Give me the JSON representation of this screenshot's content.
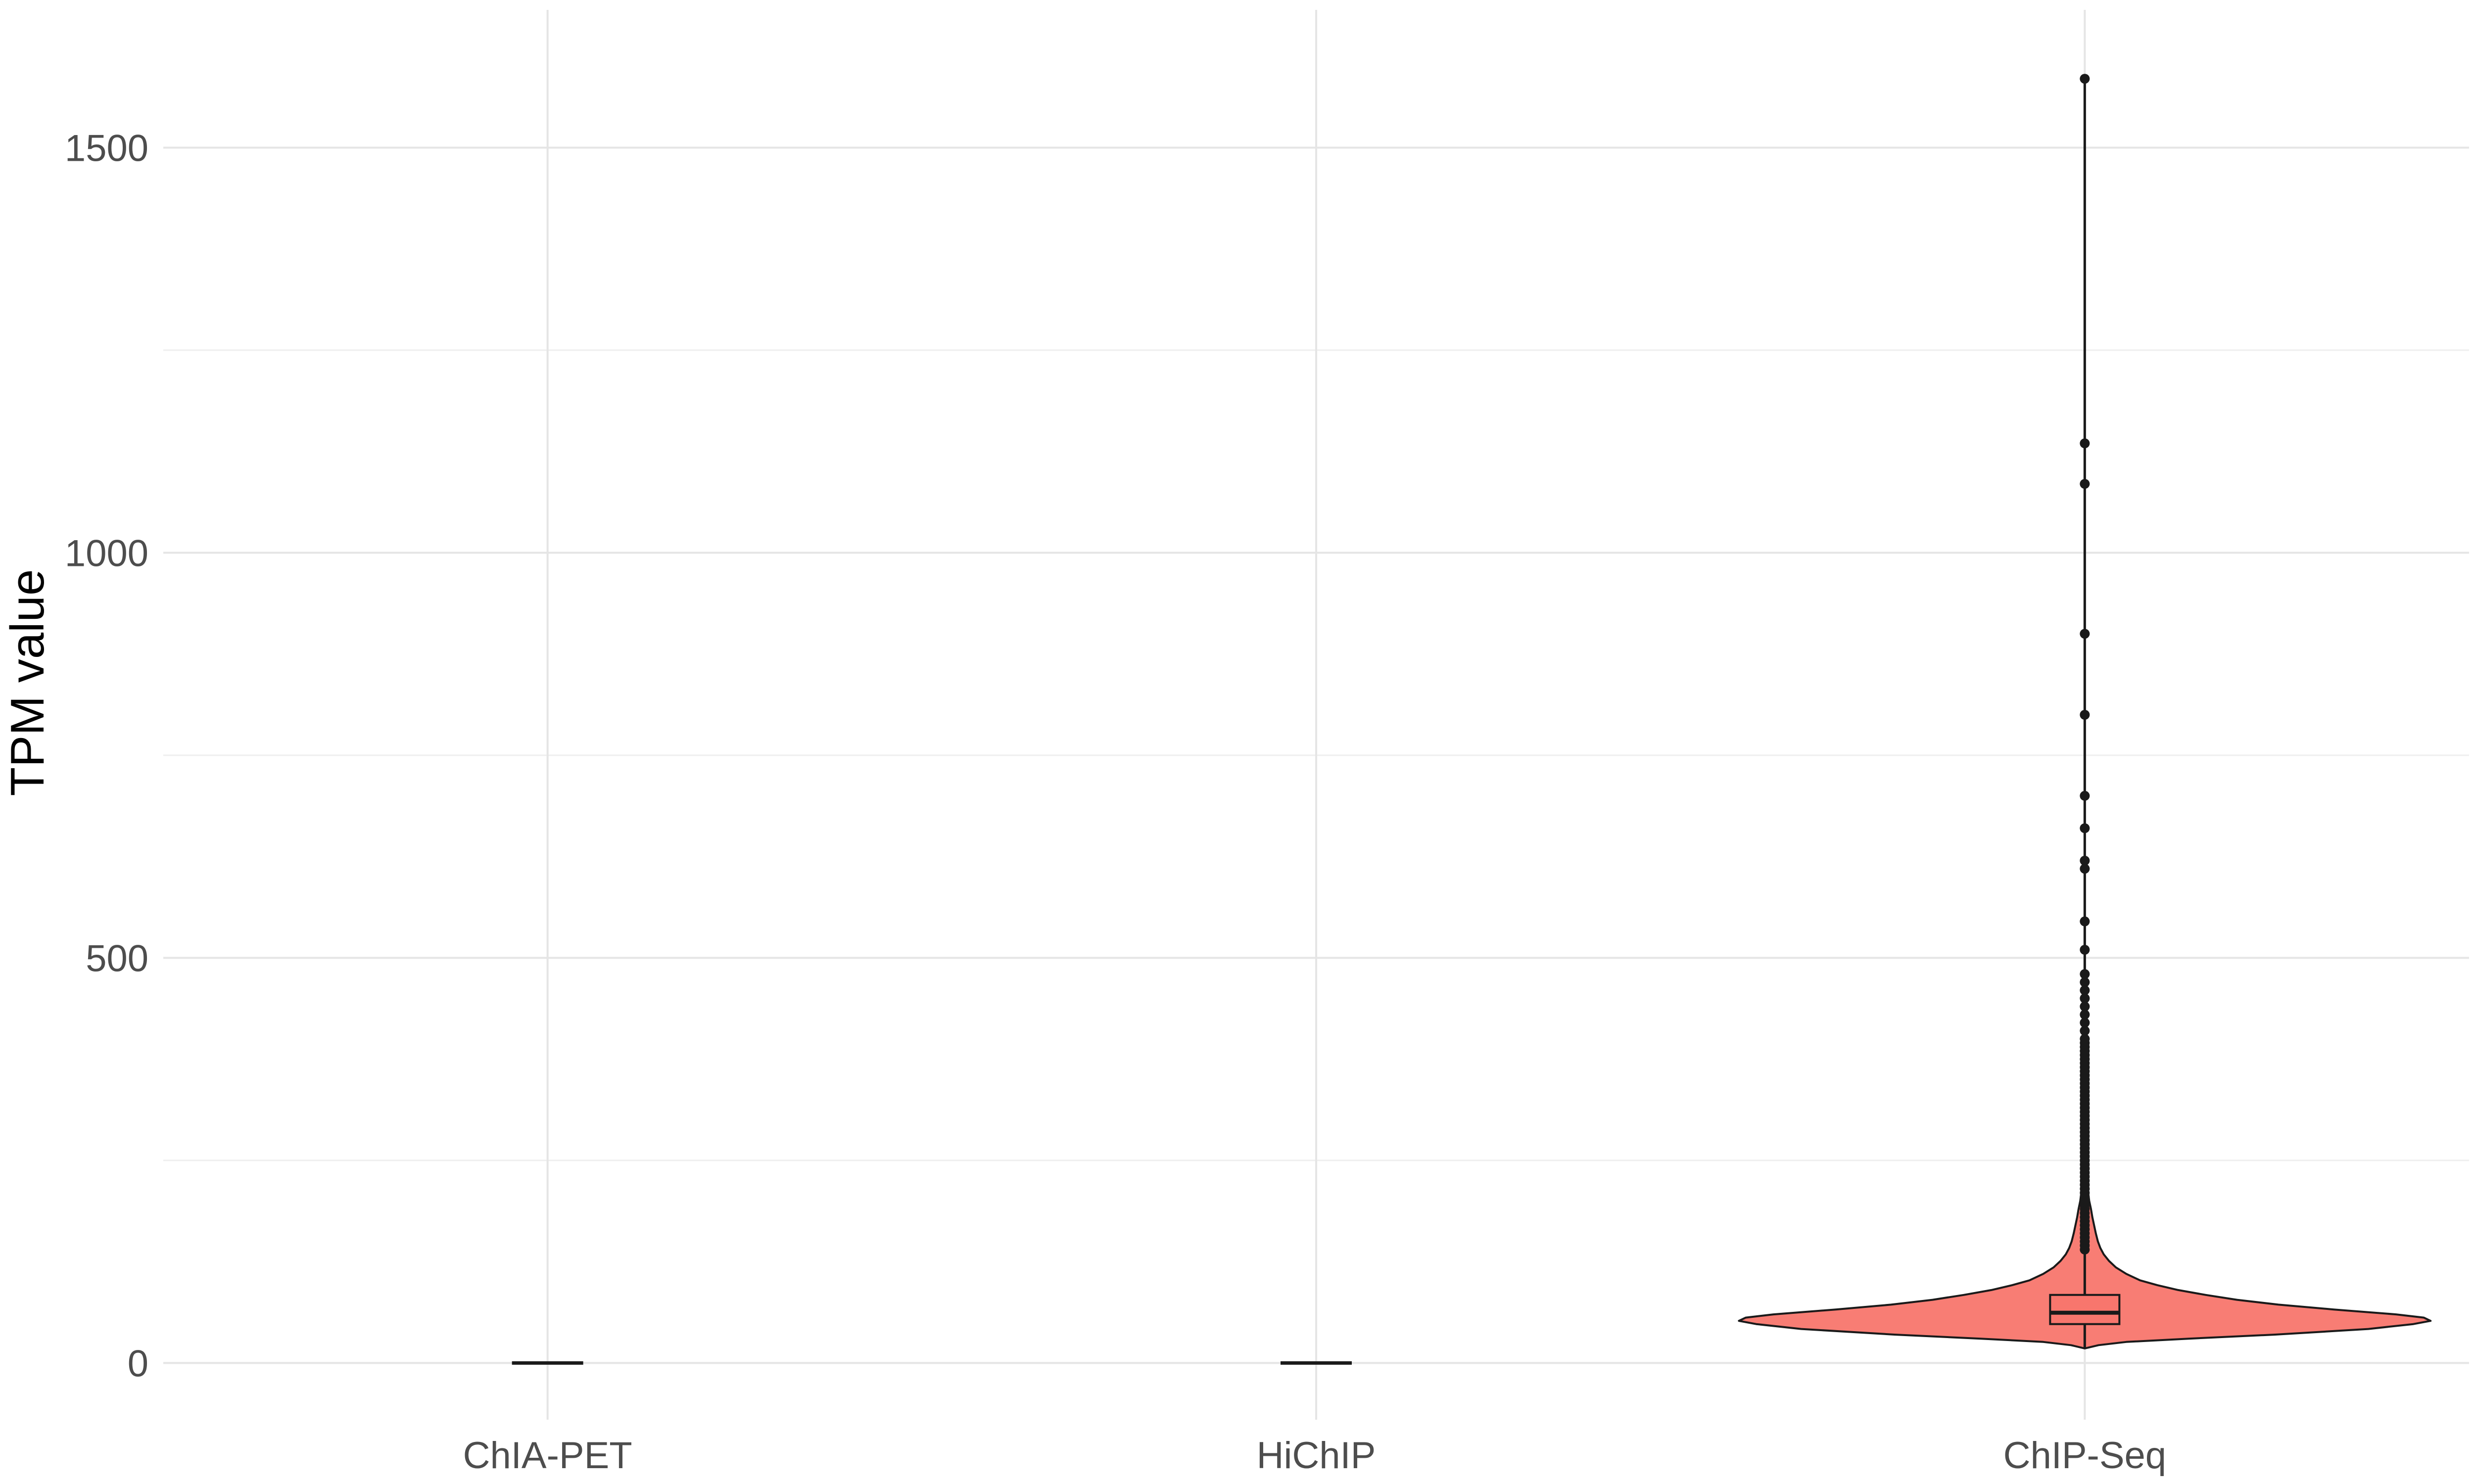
{
  "chart_data": {
    "type": "violin",
    "ylabel": "TPM value",
    "xlabel": "",
    "categories": [
      "ChIA-PET",
      "HiChIP",
      "ChIP-Seq"
    ],
    "y_ticks": [
      0,
      500,
      1000,
      1500
    ],
    "y_minor_ticks": [
      250,
      750,
      1250
    ],
    "ylim": [
      -70,
      1670
    ],
    "grid": true,
    "fill_color": "#F8766D",
    "fill_opacity": 0.95,
    "groups": [
      {
        "name": "ChIA-PET",
        "median": 0,
        "q1": 0,
        "q3": 0,
        "min": 0,
        "max": 0,
        "outliers": []
      },
      {
        "name": "HiChIP",
        "median": 0,
        "q1": 0,
        "q3": 0,
        "min": 0,
        "max": 0,
        "outliers": []
      },
      {
        "name": "ChIP-Seq",
        "median": 62,
        "q1": 48,
        "q3": 84,
        "min": 18,
        "max": 138,
        "density": [
          [
            18,
            0.0
          ],
          [
            22,
            0.04
          ],
          [
            26,
            0.12
          ],
          [
            30,
            0.3
          ],
          [
            35,
            0.55
          ],
          [
            42,
            0.82
          ],
          [
            48,
            0.95
          ],
          [
            52,
            1.0
          ],
          [
            56,
            0.98
          ],
          [
            60,
            0.9
          ],
          [
            66,
            0.72
          ],
          [
            72,
            0.56
          ],
          [
            78,
            0.44
          ],
          [
            84,
            0.35
          ],
          [
            90,
            0.27
          ],
          [
            96,
            0.21
          ],
          [
            102,
            0.16
          ],
          [
            110,
            0.12
          ],
          [
            118,
            0.09
          ],
          [
            126,
            0.07
          ],
          [
            134,
            0.055
          ],
          [
            142,
            0.045
          ],
          [
            150,
            0.038
          ],
          [
            160,
            0.032
          ],
          [
            170,
            0.027
          ],
          [
            180,
            0.022
          ],
          [
            190,
            0.018
          ],
          [
            200,
            0.013
          ],
          [
            210,
            0.01
          ],
          [
            220,
            0.006
          ],
          [
            230,
            0.0
          ]
        ],
        "outliers": [
          140,
          145,
          150,
          155,
          160,
          165,
          170,
          175,
          180,
          185,
          190,
          195,
          200,
          205,
          210,
          215,
          220,
          225,
          230,
          235,
          240,
          245,
          250,
          255,
          260,
          265,
          270,
          275,
          280,
          285,
          290,
          295,
          300,
          305,
          310,
          315,
          320,
          325,
          330,
          335,
          340,
          345,
          350,
          355,
          360,
          365,
          370,
          375,
          380,
          385,
          390,
          395,
          400,
          410,
          420,
          430,
          440,
          450,
          460,
          470,
          480,
          510,
          545,
          610,
          620,
          660,
          700,
          800,
          900,
          1085,
          1135,
          1585
        ]
      }
    ]
  }
}
